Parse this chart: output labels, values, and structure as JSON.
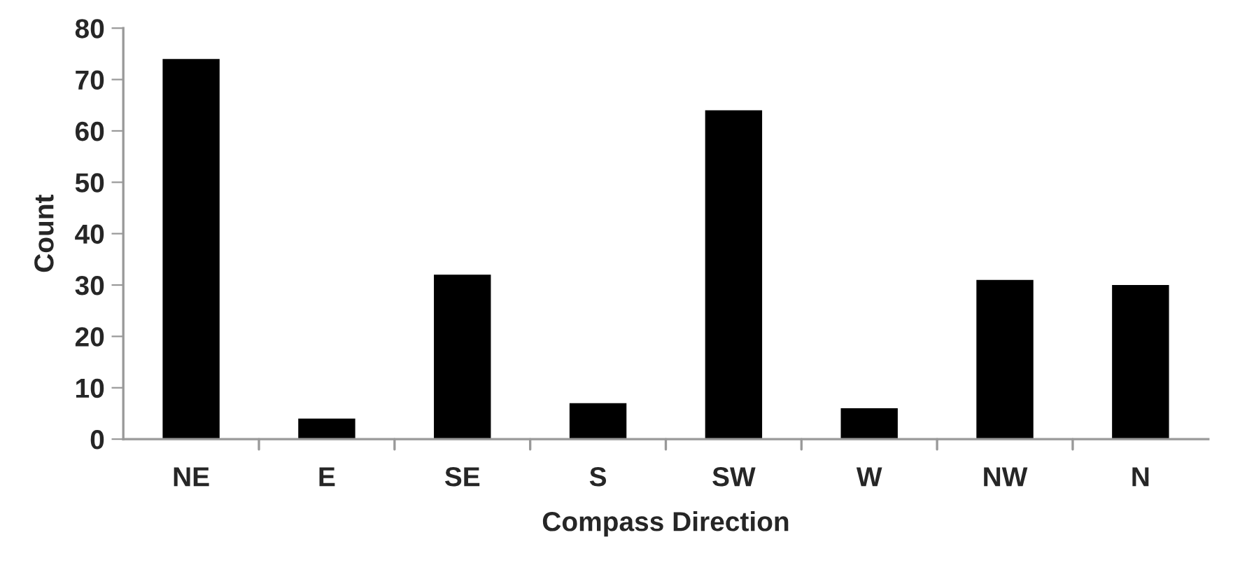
{
  "chart_data": {
    "type": "bar",
    "xlabel": "Compass Direction",
    "ylabel": "Count",
    "categories": [
      "NE",
      "E",
      "SE",
      "S",
      "SW",
      "W",
      "NW",
      "N"
    ],
    "values": [
      74,
      4,
      32,
      7,
      64,
      6,
      31,
      30
    ],
    "color": "#000000",
    "ylim": [
      0,
      80
    ],
    "yticks": [
      0,
      10,
      20,
      30,
      40,
      50,
      60,
      70,
      80
    ],
    "grid": false,
    "legend": false
  }
}
